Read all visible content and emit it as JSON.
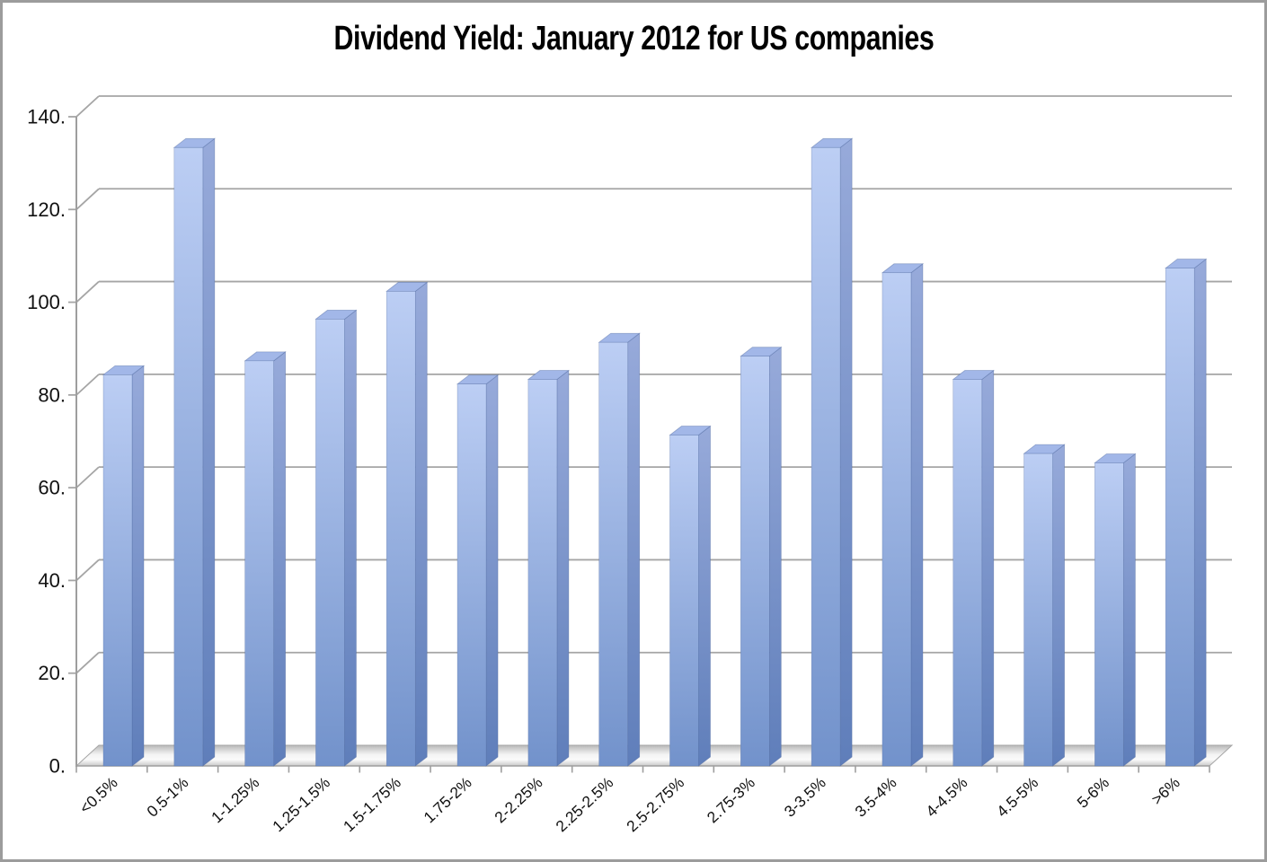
{
  "window": {
    "background_color": "#ffffff",
    "border_color": "#9c9c9c"
  },
  "header": {
    "title": "Dividend Yield: January 2012 for US companies"
  },
  "chart_data": {
    "type": "bar",
    "style": "3d-column",
    "title": "Dividend Yield: January 2012 for US companies",
    "categories": [
      "<0.5%",
      "0.5-1%",
      "1-1.25%",
      "1.25-1.5%",
      "1.5-1.75%",
      "1.75-2%",
      "2-2.25%",
      "2.25-2.5%",
      "2.5-2.75%",
      "2.75-3%",
      "3-3.5%",
      "3.5-4%",
      "4-4.5%",
      "4.5-5%",
      "5-6%",
      ">6%"
    ],
    "values": [
      83,
      132,
      86,
      95,
      101,
      81,
      82,
      90,
      70,
      87,
      132,
      105,
      82,
      66,
      64,
      106
    ],
    "xlabel": "",
    "ylabel": "",
    "ylim": [
      0,
      140
    ],
    "ytick_interval": 20,
    "ytick_labels": [
      "0.",
      "20.",
      "40.",
      "60.",
      "80.",
      "100.",
      "120.",
      "140."
    ],
    "grid": true,
    "legend": false,
    "colors": {
      "bar_front_top": "#bccef4",
      "bar_front_bottom": "#7292cb",
      "bar_side_top": "#97aada",
      "bar_side_bottom": "#5f7eba",
      "bar_top_face": "#a2b7e8",
      "bar_outline": "rgba(74,100,156,0.45)",
      "gridline": "#a5a5a5",
      "axis_line": "#9e9e9e",
      "floor_dark": "#b8b8b8",
      "floor_light": "#f4f4f4",
      "floor_front": "#c9c9c9",
      "label_text": "#111111",
      "title_text": "#000000"
    }
  }
}
